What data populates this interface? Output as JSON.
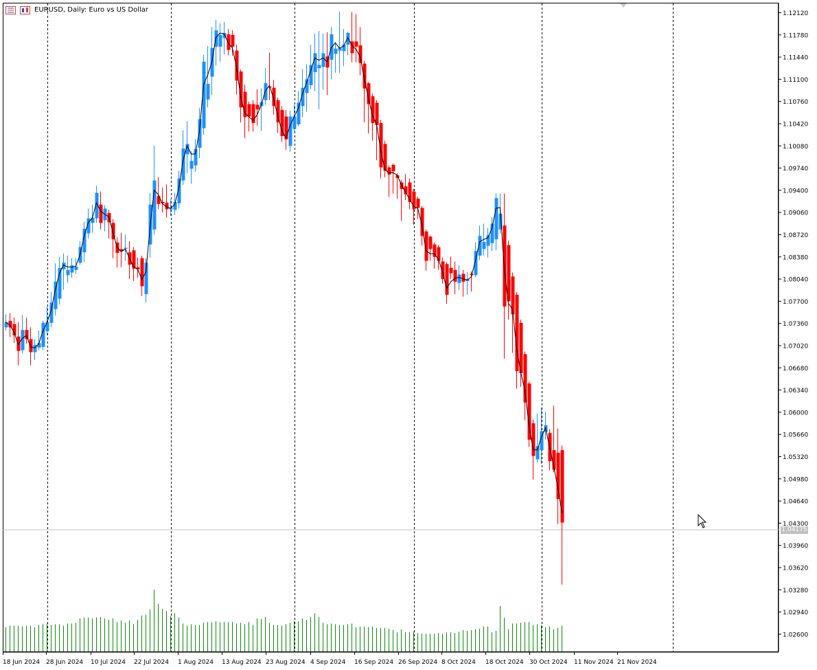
{
  "window": {
    "title": "EURUSD, Daily:  Euro vs US Dollar",
    "symbol": "EURUSD",
    "timeframe": "Daily",
    "description": "Euro vs US Dollar"
  },
  "icons": [
    "bar-chart-icon",
    "candle-chart-icon",
    "mouse-cursor-icon",
    "chart-shift-marker-icon"
  ],
  "colors": {
    "bull": "#1e90ff",
    "bear": "#ff0000",
    "volume": "#0a8a0a",
    "ma_line": "#000000",
    "grid_separator": "#000000",
    "bid_line": "#c0c0c0",
    "axis": "#000000"
  },
  "bid": {
    "price": 1.04175,
    "label": "1.04175"
  },
  "chart_data": {
    "type": "candlestick",
    "price_ticks": [
      "1.12120",
      "1.11780",
      "1.11440",
      "1.11100",
      "1.10760",
      "1.10420",
      "1.10080",
      "1.09740",
      "1.09400",
      "1.09060",
      "1.08720",
      "1.08380",
      "1.08040",
      "1.07700",
      "1.07360",
      "1.07020",
      "1.06680",
      "1.06340",
      "1.06000",
      "1.05660",
      "1.05320",
      "1.04980",
      "1.04640",
      "1.04300",
      "1.03960",
      "1.03620",
      "1.03280",
      "1.02940",
      "1.02600"
    ],
    "date_labels": [
      "18 Jun 2024",
      "28 Jun 2024",
      "10 Jul 2024",
      "22 Jul 2024",
      "1 Aug 2024",
      "13 Aug 2024",
      "23 Aug 2024",
      "4 Sep 2024",
      "16 Sep 2024",
      "26 Sep 2024",
      "8 Oct 2024",
      "18 Oct 2024",
      "30 Oct 2024",
      "11 Nov 2024",
      "21 Nov 2024"
    ],
    "period_separators": [
      "Jul 2024",
      "Aug 2024",
      "Sep 2024",
      "Oct 2024",
      "Nov 2024"
    ],
    "moving_average": "smoothed close line",
    "ylim": [
      1.0247,
      1.1225
    ],
    "candles": [
      {
        "o": 1.073,
        "h": 1.075,
        "l": 1.0725,
        "c": 1.0738
      },
      {
        "o": 1.074,
        "h": 1.0752,
        "l": 1.0715,
        "c": 1.073
      },
      {
        "o": 1.0735,
        "h": 1.0745,
        "l": 1.0706,
        "c": 1.0718
      },
      {
        "o": 1.0716,
        "h": 1.0738,
        "l": 1.0672,
        "c": 1.0694
      },
      {
        "o": 1.0695,
        "h": 1.0749,
        "l": 1.069,
        "c": 1.0726
      },
      {
        "o": 1.0726,
        "h": 1.0745,
        "l": 1.0705,
        "c": 1.0712
      },
      {
        "o": 1.0712,
        "h": 1.073,
        "l": 1.0672,
        "c": 1.0692
      },
      {
        "o": 1.0692,
        "h": 1.0712,
        "l": 1.068,
        "c": 1.0703
      },
      {
        "o": 1.0699,
        "h": 1.0725,
        "l": 1.0695,
        "c": 1.0706
      },
      {
        "o": 1.07,
        "h": 1.074,
        "l": 1.0695,
        "c": 1.0737
      },
      {
        "o": 1.0724,
        "h": 1.0762,
        "l": 1.0718,
        "c": 1.0738
      },
      {
        "o": 1.0737,
        "h": 1.0784,
        "l": 1.073,
        "c": 1.0768
      },
      {
        "o": 1.0758,
        "h": 1.0828,
        "l": 1.0748,
        "c": 1.08
      },
      {
        "o": 1.0774,
        "h": 1.0838,
        "l": 1.0765,
        "c": 1.0821
      },
      {
        "o": 1.0819,
        "h": 1.0843,
        "l": 1.0788,
        "c": 1.0829
      },
      {
        "o": 1.081,
        "h": 1.084,
        "l": 1.0798,
        "c": 1.0818
      },
      {
        "o": 1.0814,
        "h": 1.0836,
        "l": 1.0806,
        "c": 1.0825
      },
      {
        "o": 1.0818,
        "h": 1.0836,
        "l": 1.0812,
        "c": 1.0823
      },
      {
        "o": 1.0829,
        "h": 1.0862,
        "l": 1.0826,
        "c": 1.0853
      },
      {
        "o": 1.0845,
        "h": 1.0892,
        "l": 1.083,
        "c": 1.0881
      },
      {
        "o": 1.0874,
        "h": 1.0912,
        "l": 1.0866,
        "c": 1.0897
      },
      {
        "o": 1.089,
        "h": 1.0918,
        "l": 1.0875,
        "c": 1.0898
      },
      {
        "o": 1.0897,
        "h": 1.0947,
        "l": 1.089,
        "c": 1.0936
      },
      {
        "o": 1.0918,
        "h": 1.0938,
        "l": 1.088,
        "c": 1.089
      },
      {
        "o": 1.0894,
        "h": 1.0917,
        "l": 1.0877,
        "c": 1.0912
      },
      {
        "o": 1.0905,
        "h": 1.091,
        "l": 1.0866,
        "c": 1.0891
      },
      {
        "o": 1.089,
        "h": 1.0896,
        "l": 1.0836,
        "c": 1.0865
      },
      {
        "o": 1.086,
        "h": 1.0868,
        "l": 1.0822,
        "c": 1.0844
      },
      {
        "o": 1.085,
        "h": 1.0875,
        "l": 1.0822,
        "c": 1.0847
      },
      {
        "o": 1.0852,
        "h": 1.0872,
        "l": 1.0832,
        "c": 1.0852
      },
      {
        "o": 1.0845,
        "h": 1.0862,
        "l": 1.0804,
        "c": 1.0826
      },
      {
        "o": 1.0848,
        "h": 1.0853,
        "l": 1.0801,
        "c": 1.082
      },
      {
        "o": 1.0822,
        "h": 1.0837,
        "l": 1.0806,
        "c": 1.0819
      },
      {
        "o": 1.0836,
        "h": 1.084,
        "l": 1.0778,
        "c": 1.0793
      },
      {
        "o": 1.0781,
        "h": 1.0836,
        "l": 1.0768,
        "c": 1.0829
      },
      {
        "o": 1.0857,
        "h": 1.0936,
        "l": 1.0837,
        "c": 1.0918
      },
      {
        "o": 1.088,
        "h": 1.1008,
        "l": 1.0872,
        "c": 1.0955
      },
      {
        "o": 1.0931,
        "h": 1.096,
        "l": 1.0911,
        "c": 1.0919
      },
      {
        "o": 1.0922,
        "h": 1.0944,
        "l": 1.0906,
        "c": 1.092
      },
      {
        "o": 1.0921,
        "h": 1.0949,
        "l": 1.0898,
        "c": 1.0911
      },
      {
        "o": 1.0911,
        "h": 1.0926,
        "l": 1.0901,
        "c": 1.0913
      },
      {
        "o": 1.091,
        "h": 1.0936,
        "l": 1.0902,
        "c": 1.0922
      },
      {
        "o": 1.092,
        "h": 1.097,
        "l": 1.0912,
        "c": 1.0958
      },
      {
        "o": 1.0955,
        "h": 1.1032,
        "l": 1.0948,
        "c": 1.1004
      },
      {
        "o": 1.0995,
        "h": 1.1046,
        "l": 1.0966,
        "c": 1.1011
      },
      {
        "o": 1.0973,
        "h": 1.1,
        "l": 1.095,
        "c": 1.0985
      },
      {
        "o": 1.0978,
        "h": 1.1018,
        "l": 1.0968,
        "c": 1.1003
      },
      {
        "o": 1.1005,
        "h": 1.1066,
        "l": 1.0989,
        "c": 1.1049
      },
      {
        "o": 1.1035,
        "h": 1.1148,
        "l": 1.1025,
        "c": 1.1137
      },
      {
        "o": 1.1079,
        "h": 1.1161,
        "l": 1.1067,
        "c": 1.1103
      },
      {
        "o": 1.1114,
        "h": 1.119,
        "l": 1.1086,
        "c": 1.1158
      },
      {
        "o": 1.116,
        "h": 1.1201,
        "l": 1.1131,
        "c": 1.1185
      },
      {
        "o": 1.116,
        "h": 1.1196,
        "l": 1.1137,
        "c": 1.1178
      },
      {
        "o": 1.1173,
        "h": 1.1198,
        "l": 1.1148,
        "c": 1.1181
      },
      {
        "o": 1.1179,
        "h": 1.1187,
        "l": 1.1147,
        "c": 1.1155
      },
      {
        "o": 1.1178,
        "h": 1.1185,
        "l": 1.1146,
        "c": 1.116
      },
      {
        "o": 1.1154,
        "h": 1.1163,
        "l": 1.1087,
        "c": 1.1108
      },
      {
        "o": 1.1122,
        "h": 1.1125,
        "l": 1.1044,
        "c": 1.1067
      },
      {
        "o": 1.1091,
        "h": 1.1102,
        "l": 1.102,
        "c": 1.1052
      },
      {
        "o": 1.1072,
        "h": 1.1076,
        "l": 1.103,
        "c": 1.1053
      },
      {
        "o": 1.1072,
        "h": 1.1078,
        "l": 1.103,
        "c": 1.1043
      },
      {
        "o": 1.1071,
        "h": 1.1095,
        "l": 1.1039,
        "c": 1.1064
      },
      {
        "o": 1.1069,
        "h": 1.1096,
        "l": 1.1031,
        "c": 1.1075
      },
      {
        "o": 1.1078,
        "h": 1.1127,
        "l": 1.1071,
        "c": 1.1104
      },
      {
        "o": 1.1099,
        "h": 1.1151,
        "l": 1.1078,
        "c": 1.1098
      },
      {
        "o": 1.1097,
        "h": 1.1109,
        "l": 1.1056,
        "c": 1.1069
      },
      {
        "o": 1.1078,
        "h": 1.1082,
        "l": 1.1028,
        "c": 1.1044
      },
      {
        "o": 1.1063,
        "h": 1.1069,
        "l": 1.1014,
        "c": 1.1023
      },
      {
        "o": 1.1053,
        "h": 1.1063,
        "l": 1.1002,
        "c": 1.1018
      },
      {
        "o": 1.1008,
        "h": 1.1062,
        "l": 1.0999,
        "c": 1.1053
      },
      {
        "o": 1.1034,
        "h": 1.1071,
        "l": 1.103,
        "c": 1.1053
      },
      {
        "o": 1.1041,
        "h": 1.1092,
        "l": 1.1038,
        "c": 1.1074
      },
      {
        "o": 1.1069,
        "h": 1.1126,
        "l": 1.1052,
        "c": 1.1097
      },
      {
        "o": 1.1089,
        "h": 1.1133,
        "l": 1.106,
        "c": 1.111
      },
      {
        "o": 1.1101,
        "h": 1.1163,
        "l": 1.1095,
        "c": 1.1132
      },
      {
        "o": 1.1121,
        "h": 1.118,
        "l": 1.1092,
        "c": 1.115
      },
      {
        "o": 1.1127,
        "h": 1.1184,
        "l": 1.1064,
        "c": 1.1132
      },
      {
        "o": 1.1129,
        "h": 1.118,
        "l": 1.1094,
        "c": 1.115
      },
      {
        "o": 1.1145,
        "h": 1.1182,
        "l": 1.1086,
        "c": 1.1128
      },
      {
        "o": 1.114,
        "h": 1.119,
        "l": 1.111,
        "c": 1.1179
      },
      {
        "o": 1.1149,
        "h": 1.1167,
        "l": 1.112,
        "c": 1.1157
      },
      {
        "o": 1.1154,
        "h": 1.1214,
        "l": 1.112,
        "c": 1.1158
      },
      {
        "o": 1.1153,
        "h": 1.1187,
        "l": 1.113,
        "c": 1.1163
      },
      {
        "o": 1.1163,
        "h": 1.1183,
        "l": 1.1147,
        "c": 1.1181
      },
      {
        "o": 1.1168,
        "h": 1.1213,
        "l": 1.1136,
        "c": 1.115
      },
      {
        "o": 1.1168,
        "h": 1.121,
        "l": 1.1136,
        "c": 1.116
      },
      {
        "o": 1.1162,
        "h": 1.119,
        "l": 1.1116,
        "c": 1.1135
      },
      {
        "o": 1.1134,
        "h": 1.1138,
        "l": 1.1044,
        "c": 1.1096
      },
      {
        "o": 1.1104,
        "h": 1.1106,
        "l": 1.1027,
        "c": 1.1072
      },
      {
        "o": 1.1084,
        "h": 1.1088,
        "l": 1.1016,
        "c": 1.1043
      },
      {
        "o": 1.1074,
        "h": 1.1078,
        "l": 1.0986,
        "c": 1.104
      },
      {
        "o": 1.1043,
        "h": 1.1048,
        "l": 1.0958,
        "c": 1.0975
      },
      {
        "o": 1.1011,
        "h": 1.1016,
        "l": 1.096,
        "c": 1.097
      },
      {
        "o": 1.0975,
        "h": 1.0978,
        "l": 1.093,
        "c": 1.0964
      },
      {
        "o": 1.0979,
        "h": 1.0981,
        "l": 1.0935,
        "c": 1.0969
      },
      {
        "o": 1.0963,
        "h": 1.0966,
        "l": 1.0927,
        "c": 1.0959
      },
      {
        "o": 1.0952,
        "h": 1.0956,
        "l": 1.0893,
        "c": 1.0942
      },
      {
        "o": 1.0946,
        "h": 1.0965,
        "l": 1.0925,
        "c": 1.0934
      },
      {
        "o": 1.0952,
        "h": 1.0958,
        "l": 1.0911,
        "c": 1.0922
      },
      {
        "o": 1.0938,
        "h": 1.0942,
        "l": 1.0887,
        "c": 1.0911
      },
      {
        "o": 1.0927,
        "h": 1.093,
        "l": 1.0896,
        "c": 1.0913
      },
      {
        "o": 1.0913,
        "h": 1.0916,
        "l": 1.0855,
        "c": 1.087
      },
      {
        "o": 1.0877,
        "h": 1.088,
        "l": 1.0817,
        "c": 1.0832
      },
      {
        "o": 1.0869,
        "h": 1.0871,
        "l": 1.0832,
        "c": 1.085
      },
      {
        "o": 1.0857,
        "h": 1.086,
        "l": 1.082,
        "c": 1.0838
      },
      {
        "o": 1.0853,
        "h": 1.0856,
        "l": 1.0818,
        "c": 1.0832
      },
      {
        "o": 1.0831,
        "h": 1.0837,
        "l": 1.0797,
        "c": 1.0804
      },
      {
        "o": 1.0827,
        "h": 1.083,
        "l": 1.0766,
        "c": 1.078
      },
      {
        "o": 1.0821,
        "h": 1.0838,
        "l": 1.0804,
        "c": 1.0813
      },
      {
        "o": 1.0818,
        "h": 1.0831,
        "l": 1.0781,
        "c": 1.08
      },
      {
        "o": 1.0798,
        "h": 1.0825,
        "l": 1.0787,
        "c": 1.0811
      },
      {
        "o": 1.0812,
        "h": 1.0818,
        "l": 1.0777,
        "c": 1.08
      },
      {
        "o": 1.0801,
        "h": 1.0815,
        "l": 1.078,
        "c": 1.0804
      },
      {
        "o": 1.0812,
        "h": 1.0816,
        "l": 1.0785,
        "c": 1.081
      },
      {
        "o": 1.081,
        "h": 1.086,
        "l": 1.0807,
        "c": 1.0847
      },
      {
        "o": 1.084,
        "h": 1.0886,
        "l": 1.0833,
        "c": 1.087
      },
      {
        "o": 1.085,
        "h": 1.0889,
        "l": 1.084,
        "c": 1.0861
      },
      {
        "o": 1.0855,
        "h": 1.0882,
        "l": 1.0837,
        "c": 1.0871
      },
      {
        "o": 1.0859,
        "h": 1.0899,
        "l": 1.0847,
        "c": 1.0889
      },
      {
        "o": 1.0865,
        "h": 1.0935,
        "l": 1.0848,
        "c": 1.0928
      },
      {
        "o": 1.088,
        "h": 1.0935,
        "l": 1.0874,
        "c": 1.0904
      },
      {
        "o": 1.0886,
        "h": 1.0935,
        "l": 1.0682,
        "c": 1.0762
      },
      {
        "o": 1.0856,
        "h": 1.0863,
        "l": 1.0742,
        "c": 1.077
      },
      {
        "o": 1.0808,
        "h": 1.0814,
        "l": 1.0691,
        "c": 1.075
      },
      {
        "o": 1.078,
        "h": 1.0784,
        "l": 1.0636,
        "c": 1.0663
      },
      {
        "o": 1.0737,
        "h": 1.0742,
        "l": 1.0639,
        "c": 1.066
      },
      {
        "o": 1.0689,
        "h": 1.0693,
        "l": 1.0588,
        "c": 1.0615
      },
      {
        "o": 1.0644,
        "h": 1.0647,
        "l": 1.0547,
        "c": 1.0558
      },
      {
        "o": 1.0583,
        "h": 1.0589,
        "l": 1.0497,
        "c": 1.0533
      },
      {
        "o": 1.0528,
        "h": 1.0598,
        "l": 1.0523,
        "c": 1.0548
      },
      {
        "o": 1.0542,
        "h": 1.0607,
        "l": 1.0521,
        "c": 1.0571
      },
      {
        "o": 1.057,
        "h": 1.0601,
        "l": 1.0558,
        "c": 1.058
      },
      {
        "o": 1.0568,
        "h": 1.0574,
        "l": 1.0511,
        "c": 1.0525
      },
      {
        "o": 1.0542,
        "h": 1.061,
        "l": 1.0508,
        "c": 1.0512
      },
      {
        "o": 1.0538,
        "h": 1.0575,
        "l": 1.0429,
        "c": 1.0467
      },
      {
        "o": 1.0542,
        "h": 1.0549,
        "l": 1.0336,
        "c": 1.0431
      }
    ],
    "volume": [
      33,
      35,
      35,
      35,
      34,
      35,
      35,
      33,
      36,
      37,
      38,
      36,
      37,
      37,
      35,
      38,
      38,
      39,
      45,
      46,
      46,
      45,
      46,
      47,
      45,
      43,
      45,
      40,
      42,
      39,
      42,
      37,
      43,
      49,
      50,
      57,
      84,
      65,
      58,
      55,
      48,
      52,
      46,
      38,
      35,
      37,
      36,
      36,
      39,
      40,
      40,
      41,
      40,
      40,
      40,
      40,
      38,
      39,
      37,
      40,
      36,
      45,
      44,
      47,
      39,
      36,
      36,
      35,
      37,
      39,
      41,
      41,
      45,
      43,
      47,
      52,
      47,
      39,
      37,
      38,
      37,
      36,
      36,
      37,
      38,
      33,
      34,
      34,
      33,
      34,
      32,
      32,
      32,
      31,
      29,
      26,
      30,
      26,
      26,
      27,
      25,
      24,
      24,
      24,
      24,
      25,
      24,
      26,
      26,
      25,
      27,
      29,
      28,
      29,
      30,
      31,
      34,
      34,
      26,
      28,
      62,
      46,
      30,
      38,
      38,
      39,
      40,
      40,
      36,
      37,
      36,
      33,
      34,
      30,
      32,
      35
    ]
  }
}
